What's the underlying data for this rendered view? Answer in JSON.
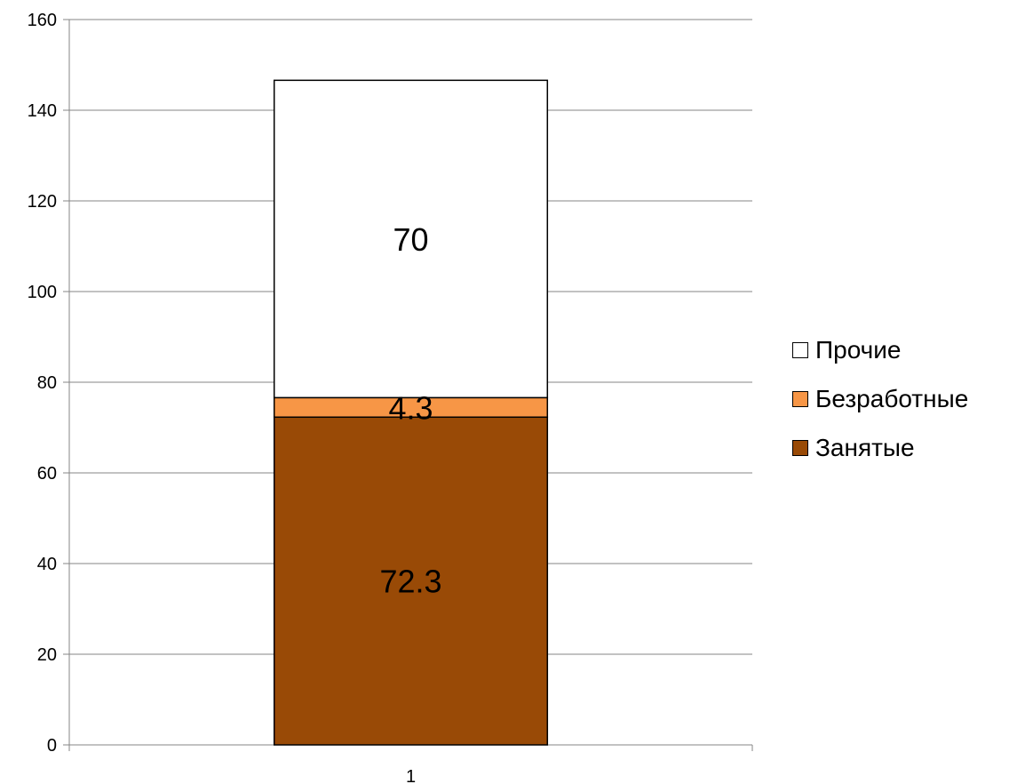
{
  "chart_data": {
    "type": "bar",
    "stacked": true,
    "categories": [
      "1"
    ],
    "series": [
      {
        "name": "Занятые",
        "values": [
          72.3
        ],
        "color": "#994A06",
        "label": "72.3"
      },
      {
        "name": "Безработные",
        "values": [
          4.3
        ],
        "color": "#F79646",
        "label": "4.3"
      },
      {
        "name": "Прочие",
        "values": [
          70
        ],
        "color": "#FFFFFF",
        "label": "70"
      }
    ],
    "title": "",
    "xlabel": "",
    "ylabel": "",
    "ylim": [
      0,
      160
    ],
    "yticks": [
      "0",
      "20",
      "40",
      "60",
      "80",
      "100",
      "120",
      "140",
      "160"
    ],
    "grid": true,
    "legend_position": "right",
    "legend_order": [
      "Прочие",
      "Безработные",
      "Занятые"
    ]
  }
}
